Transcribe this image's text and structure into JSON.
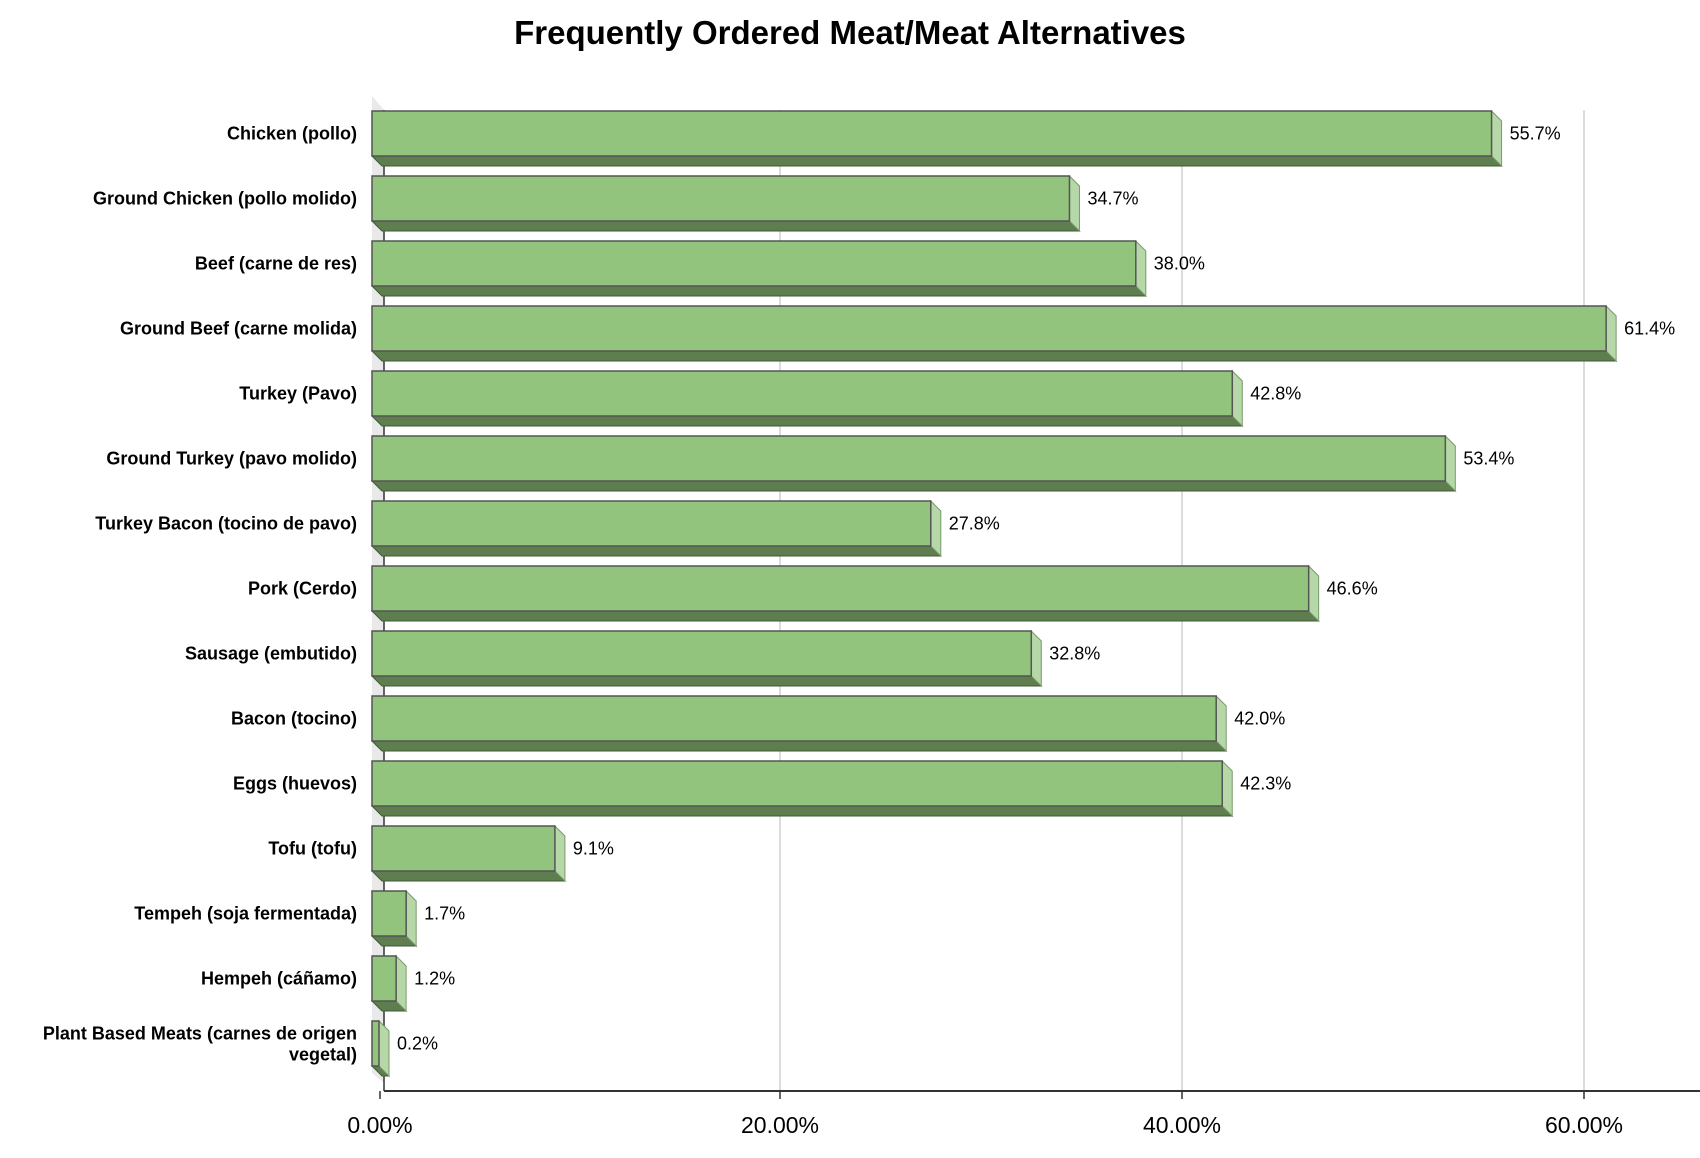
{
  "chart_data": {
    "type": "bar",
    "orientation": "horizontal",
    "title": "Frequently Ordered Meat/Meat Alternatives",
    "xlabel": "",
    "ylabel": "",
    "categories": [
      "Chicken (pollo)",
      "Ground Chicken (pollo molido)",
      "Beef (carne de res)",
      "Ground Beef (carne molida)",
      "Turkey (Pavo)",
      "Ground Turkey (pavo molido)",
      "Turkey Bacon (tocino de pavo)",
      "Pork (Cerdo)",
      "Sausage (embutido)",
      "Bacon (tocino)",
      "Eggs (huevos)",
      "Tofu (tofu)",
      "Tempeh (soja fermentada)",
      "Hempeh (cáñamo)",
      "Plant Based Meats (carnes de origen vegetal)"
    ],
    "values": [
      55.7,
      34.7,
      38.0,
      61.4,
      42.8,
      53.4,
      27.8,
      46.6,
      32.8,
      42.0,
      42.3,
      9.1,
      1.7,
      1.2,
      0.2
    ],
    "value_labels": [
      "55.7%",
      "34.7%",
      "38.0%",
      "61.4%",
      "42.8%",
      "53.4%",
      "27.8%",
      "46.6%",
      "32.8%",
      "42.0%",
      "42.3%",
      "9.1%",
      "1.7%",
      "1.2%",
      "0.2%"
    ],
    "xticks": [
      0,
      20,
      40,
      60
    ],
    "xtick_labels": [
      "0.00%",
      "20.00%",
      "40.00%",
      "60.00%"
    ],
    "xlim": [
      0,
      65
    ],
    "grid": true,
    "colors": {
      "bar_face": "#93c47d",
      "bar_bottom": "#5e7e4f",
      "bar_side": "#b6d7a8",
      "bar_stroke": "#555555",
      "grid": "#d0d0d0",
      "axis": "#333333"
    }
  }
}
